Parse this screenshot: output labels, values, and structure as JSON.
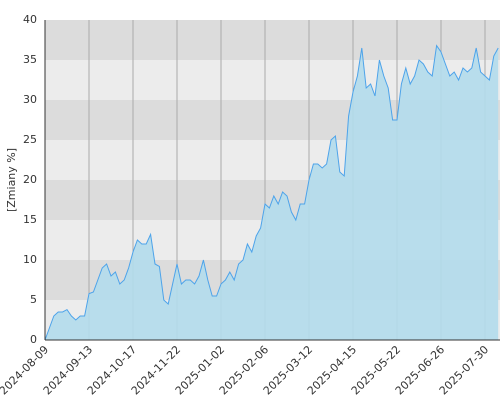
{
  "chart_data": {
    "type": "area",
    "y_label": "[Zmiany %]",
    "x": [
      "2024-08-09",
      null,
      null,
      null,
      null,
      null,
      null,
      null,
      null,
      null,
      "2024-09-13",
      null,
      null,
      null,
      null,
      null,
      null,
      null,
      null,
      null,
      "2024-10-17",
      null,
      null,
      null,
      null,
      null,
      null,
      null,
      null,
      null,
      "2024-11-22",
      null,
      null,
      null,
      null,
      null,
      null,
      null,
      null,
      null,
      "2025-01-02",
      null,
      null,
      null,
      null,
      null,
      null,
      null,
      null,
      null,
      "2025-02-06",
      null,
      null,
      null,
      null,
      null,
      null,
      null,
      null,
      null,
      "2025-03-12",
      null,
      null,
      null,
      null,
      null,
      null,
      null,
      null,
      null,
      "2025-04-15",
      null,
      null,
      null,
      null,
      null,
      null,
      null,
      null,
      null,
      "2025-05-22",
      null,
      null,
      null,
      null,
      null,
      null,
      null,
      null,
      null,
      "2025-06-26",
      null,
      null,
      null,
      null,
      null,
      null,
      null,
      null,
      null,
      "2025-07-30",
      null,
      null,
      null
    ],
    "values": [
      0,
      1.5,
      3,
      3.5,
      3.5,
      3.8,
      3,
      2.5,
      3,
      3,
      5.8,
      6,
      7.5,
      9,
      9.5,
      8,
      8.5,
      7,
      7.5,
      9,
      11,
      12.5,
      12,
      12,
      13.2,
      9.5,
      9.2,
      5,
      4.5,
      7,
      9.5,
      7,
      7.5,
      7.5,
      7,
      8,
      10,
      7.5,
      5.5,
      5.5,
      7,
      7.5,
      8.5,
      7.5,
      9.5,
      10,
      12,
      11,
      13,
      14,
      17,
      16.5,
      18,
      17,
      18.5,
      18,
      16,
      15,
      17,
      17,
      20,
      22,
      22,
      21.5,
      22,
      25,
      25.5,
      21,
      20.5,
      28,
      31,
      33,
      36.5,
      31.5,
      32,
      30.5,
      35,
      33,
      31.5,
      27.5,
      27.5,
      32,
      34,
      32,
      33,
      35,
      34.5,
      33.5,
      33,
      36.8,
      36,
      34.5,
      33,
      33.5,
      32.5,
      34,
      33.5,
      34,
      36.5,
      33.5,
      33,
      32.5,
      35.5,
      36.5
    ],
    "color": "#4da3ea",
    "fill": "#b3dcec",
    "ylim": [
      0,
      40
    ],
    "yticks": [
      0,
      5,
      10,
      15,
      20,
      25,
      30,
      35,
      40
    ],
    "band_colors": [
      "#ececec",
      "#dcdcdc"
    ],
    "grid": true
  }
}
